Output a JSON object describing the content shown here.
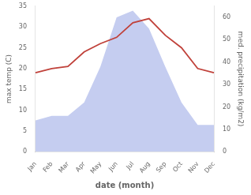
{
  "chart_data": {
    "type": "line",
    "xlabel": "date (month)",
    "ylabel": "max temp (C)",
    "y2label": "med. precipitation (kg/m2)",
    "categories": [
      "Jan",
      "Feb",
      "Mar",
      "Apr",
      "May",
      "Jun",
      "Jul",
      "Aug",
      "Sep",
      "Oct",
      "Nov",
      "Dec"
    ],
    "series": [
      {
        "type": "line",
        "color": "#c0413a",
        "values": [
          19,
          20,
          20.5,
          24,
          26,
          27.5,
          31,
          32,
          28,
          25,
          20,
          19
        ]
      },
      {
        "type": "area",
        "color": "#c5cdf0",
        "axis": "y2",
        "values": [
          14,
          16,
          16,
          22,
          38,
          60,
          63,
          55,
          38,
          22,
          12,
          12
        ]
      }
    ],
    "ylim": [
      0,
      35
    ],
    "yticks": [
      0,
      5,
      10,
      15,
      20,
      25,
      30,
      35
    ],
    "y2lim": [
      0,
      65
    ],
    "y2ticks": [
      0,
      10,
      20,
      30,
      40,
      50,
      60
    ],
    "grid": false
  }
}
